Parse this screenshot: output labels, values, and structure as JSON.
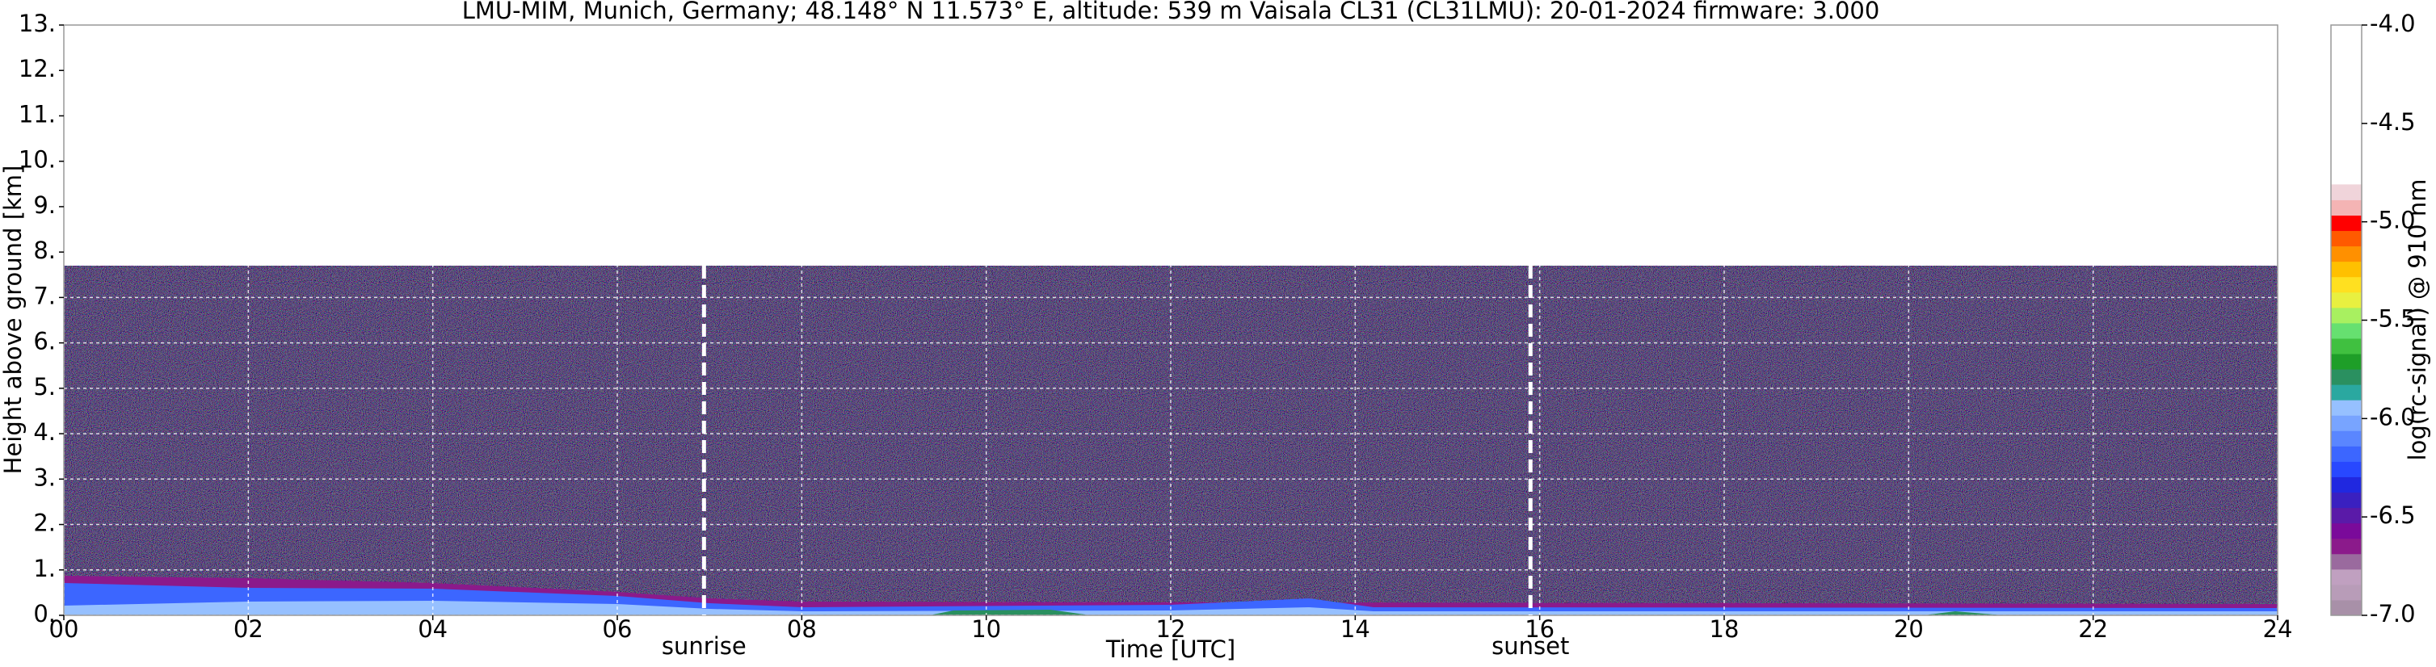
{
  "chart_data": {
    "type": "heatmap",
    "title": "LMU-MIM, Munich, Germany; 48.148° N 11.573° E, altitude: 539 m    Vaisala CL31 (CL31LMU): 20-01-2024    firmware: 3.000",
    "x_label": "Time [UTC]",
    "y_label": "Height above ground [km]",
    "xlim": [
      0,
      24
    ],
    "xticks": [
      {
        "value": 0,
        "label": "00"
      },
      {
        "value": 2,
        "label": "02"
      },
      {
        "value": 4,
        "label": "04"
      },
      {
        "value": 6,
        "label": "06"
      },
      {
        "value": 8,
        "label": "08"
      },
      10,
      12,
      14,
      16,
      18,
      20,
      22,
      24
    ],
    "ylim": [
      0,
      13
    ],
    "yticks": [
      {
        "value": 0,
        "label": "0."
      },
      {
        "value": 1,
        "label": "1."
      },
      {
        "value": 2,
        "label": "2."
      },
      {
        "value": 3,
        "label": "3."
      },
      {
        "value": 4,
        "label": "4."
      },
      {
        "value": 5,
        "label": "5."
      },
      {
        "value": 6,
        "label": "6."
      },
      {
        "value": 7,
        "label": "7."
      },
      {
        "value": 8,
        "label": "8."
      },
      {
        "value": 9,
        "label": "9."
      },
      {
        "value": 10,
        "label": "10."
      },
      {
        "value": 11,
        "label": "11."
      },
      {
        "value": 12,
        "label": "12."
      },
      {
        "value": 13,
        "label": "13."
      }
    ],
    "grid": true,
    "annotations": [
      {
        "text": "sunrise",
        "x": 6.94
      },
      {
        "text": "sunset",
        "x": 15.9
      }
    ],
    "colorbar": {
      "label": "log(rc-signal) @ 910 nm",
      "lim": [
        -7,
        -4
      ],
      "ticks": [
        {
          "value": -4,
          "label": "-4.0"
        },
        -4.5,
        {
          "value": -5,
          "label": "-5.0"
        },
        -5.5,
        {
          "value": -6,
          "label": "-6.0"
        },
        -6.5,
        {
          "value": -7,
          "label": "-7.0"
        }
      ],
      "colors": [
        "#a890a8",
        "#b89cb8",
        "#c0a0c0",
        "#9a6a9e",
        "#8b1a8b",
        "#7a0a9a",
        "#5a1aa8",
        "#3a20c0",
        "#2028e0",
        "#2848ff",
        "#3c66ff",
        "#5a86ff",
        "#78a4ff",
        "#96c0ff",
        "#2aa8a0",
        "#2a9060",
        "#1e9e28",
        "#40c040",
        "#66e070",
        "#a8f060",
        "#e8f040",
        "#ffe020",
        "#ffc000",
        "#ff9000",
        "#ff5a00",
        "#ff0000",
        "#f4b4b4",
        "#f0d4da"
      ]
    }
  }
}
